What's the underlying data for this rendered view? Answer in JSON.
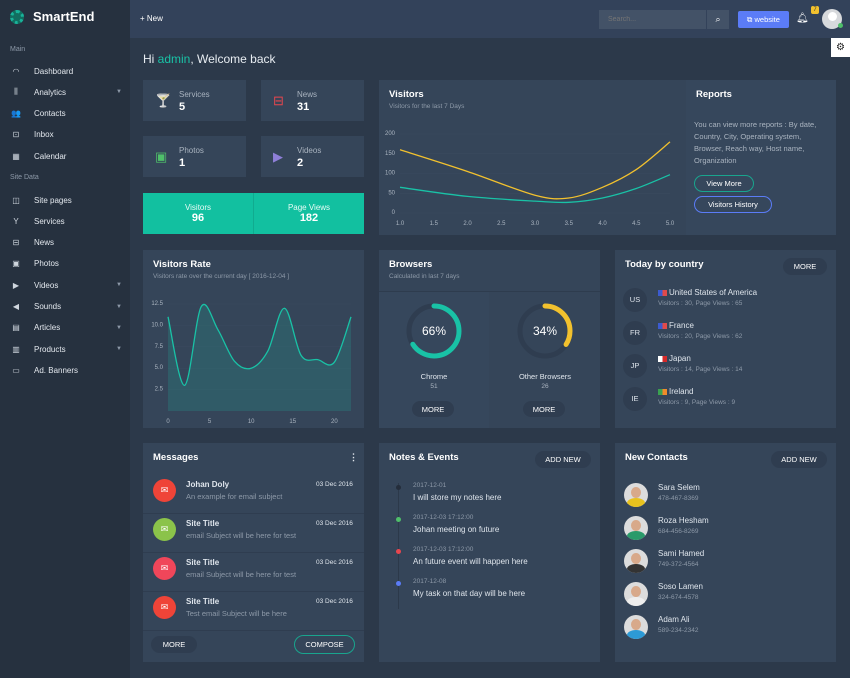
{
  "brand": "SmartEnd",
  "sidebar": {
    "section_main": "Main",
    "section_site": "Site Data",
    "items": [
      {
        "label": "Dashboard",
        "icon": "dashboard-icon",
        "glyph": "◠",
        "caret": false
      },
      {
        "label": "Analytics",
        "icon": "analytics-icon",
        "glyph": "⫼",
        "caret": true
      },
      {
        "label": "Contacts",
        "icon": "contacts-icon",
        "glyph": "👥",
        "caret": false
      },
      {
        "label": "Inbox",
        "icon": "inbox-icon",
        "glyph": "⊡",
        "caret": false
      },
      {
        "label": "Calendar",
        "icon": "calendar-icon",
        "glyph": "▦",
        "caret": false
      },
      {
        "label": "Site pages",
        "icon": "site-pages-icon",
        "glyph": "◫",
        "caret": false
      },
      {
        "label": "Services",
        "icon": "services-icon",
        "glyph": "Y",
        "caret": false
      },
      {
        "label": "News",
        "icon": "news-icon",
        "glyph": "⊟",
        "caret": false
      },
      {
        "label": "Photos",
        "icon": "photos-icon",
        "glyph": "▣",
        "caret": false
      },
      {
        "label": "Videos",
        "icon": "videos-icon",
        "glyph": "▶",
        "caret": true
      },
      {
        "label": "Sounds",
        "icon": "sounds-icon",
        "glyph": "◀",
        "caret": true
      },
      {
        "label": "Articles",
        "icon": "articles-icon",
        "glyph": "▤",
        "caret": true
      },
      {
        "label": "Products",
        "icon": "products-icon",
        "glyph": "▥",
        "caret": true
      },
      {
        "label": "Ad. Banners",
        "icon": "ad-banners-icon",
        "glyph": "▭",
        "caret": false
      }
    ]
  },
  "header": {
    "new_label": "New",
    "search_placeholder": "Search...",
    "website_label": "website",
    "notification_count": "7"
  },
  "welcome": {
    "hi": "Hi ",
    "user": "admin",
    "rest": ", Welcome back"
  },
  "stats": [
    {
      "label": "Services",
      "value": "5",
      "icon": "services-icon",
      "glyph": "🍸",
      "color": "#5b7cf7"
    },
    {
      "label": "News",
      "value": "31",
      "icon": "cast-icon",
      "glyph": "⊟",
      "color": "#e8464e"
    },
    {
      "label": "Photos",
      "value": "1",
      "icon": "photo-icon",
      "glyph": "▣",
      "color": "#4fbf6a"
    },
    {
      "label": "Videos",
      "value": "2",
      "icon": "video-icon",
      "glyph": "▶",
      "color": "#8e7fd8"
    }
  ],
  "totals": {
    "visitors_label": "Visitors",
    "visitors": "96",
    "pageviews_label": "Page Views",
    "pageviews": "182"
  },
  "visitors_card": {
    "title": "Visitors",
    "subtitle": "Visitors for the last 7 Days"
  },
  "reports": {
    "title": "Reports",
    "text": "You can view more reports : By date, Country, City, Operating system, Browser, Reach way, Host name, Organization",
    "view_more": "View More",
    "history": "Visitors History"
  },
  "rate_card": {
    "title": "Visitors Rate",
    "subtitle": "Visitors rate over the current day [ 2016-12-04 ]"
  },
  "chart_data": [
    {
      "type": "line",
      "xlim": [
        1,
        5
      ],
      "ylim": [
        0,
        200
      ],
      "xticks": [
        "1.0",
        "1.5",
        "2.0",
        "2.5",
        "3.0",
        "3.5",
        "4.0",
        "4.5",
        "5.0"
      ],
      "yticks": [
        "0",
        "50",
        "100",
        "150",
        "200"
      ],
      "x": [
        1,
        2,
        3,
        3.5,
        4,
        4.5,
        5
      ],
      "series": [
        {
          "color": "#f2c12e",
          "values": [
            160,
            105,
            45,
            38,
            65,
            110,
            180
          ]
        },
        {
          "color": "#19c2a6",
          "values": [
            65,
            42,
            30,
            27,
            38,
            62,
            97
          ]
        }
      ]
    },
    {
      "type": "area",
      "xlim": [
        0,
        22
      ],
      "ylim": [
        0,
        12.5
      ],
      "xticks": [
        "0",
        "5",
        "10",
        "15",
        "20"
      ],
      "yticks": [
        "2.5",
        "5.0",
        "7.5",
        "10.0",
        "12.5"
      ],
      "x": [
        0,
        2,
        4,
        6,
        8,
        10,
        12,
        14,
        16,
        18,
        20,
        22
      ],
      "series": [
        {
          "color": "#19c2a6",
          "values": [
            11,
            3,
            12.2,
            9.5,
            5.8,
            5,
            7,
            12,
            6.5,
            6,
            5.7,
            11
          ]
        }
      ]
    }
  ],
  "browsers": {
    "title": "Browsers",
    "subtitle": "Calculated in last 7 days",
    "items": [
      {
        "pct": "66%",
        "fraction": 0.66,
        "name": "Chrome",
        "count": "51",
        "color": "#19c2a6",
        "more": "MORE"
      },
      {
        "pct": "34%",
        "fraction": 0.34,
        "name": "Other Browsers",
        "count": "26",
        "color": "#f2c12e",
        "more": "MORE"
      }
    ]
  },
  "countries": {
    "title": "Today by country",
    "more": "MORE",
    "items": [
      {
        "code": "US",
        "name": "United States of America",
        "stats": "Visitors : 30, Page Views : 65",
        "flag": [
          "#3c5bd0",
          "#e04a4a"
        ]
      },
      {
        "code": "FR",
        "name": "France",
        "stats": "Visitors : 20, Page Views : 62",
        "flag": [
          "#3c5bd0",
          "#e04a4a"
        ]
      },
      {
        "code": "JP",
        "name": "Japan",
        "stats": "Visitors : 14, Page Views : 14",
        "flag": [
          "#ffffff",
          "#d62a2a"
        ]
      },
      {
        "code": "IE",
        "name": "Ireland",
        "stats": "Visitors : 9, Page Views : 9",
        "flag": [
          "#3aa150",
          "#f08a2a"
        ]
      }
    ]
  },
  "messages": {
    "title": "Messages",
    "more": "MORE",
    "compose": "COMPOSE",
    "items": [
      {
        "from": "Johan Doly",
        "subject": "An example for email subject",
        "date": "03 Dec 2016",
        "color": "#ef4438"
      },
      {
        "from": "Site Title",
        "subject": "email Subject will be here for test",
        "date": "03 Dec 2016",
        "color": "#8bc34a"
      },
      {
        "from": "Site Title",
        "subject": "email Subject will be here for test",
        "date": "03 Dec 2016",
        "color": "#f0465a"
      },
      {
        "from": "Site Title",
        "subject": "Test email Subject will be here",
        "date": "03 Dec 2016",
        "color": "#ef4438"
      }
    ]
  },
  "notes": {
    "title": "Notes & Events",
    "add": "ADD NEW",
    "items": [
      {
        "date": "2017-12-01",
        "text": "I will store my notes here",
        "color": "#242d3b"
      },
      {
        "date": "2017-12-03 17:12:00",
        "text": "Johan meeting on future",
        "color": "#4fbf6a"
      },
      {
        "date": "2017-12-03 17:12:00",
        "text": "An future event will happen here",
        "color": "#e8464e"
      },
      {
        "date": "2017-12-08",
        "text": "My task on that day will be here",
        "color": "#5b7cf7"
      }
    ]
  },
  "contacts": {
    "title": "New Contacts",
    "add": "ADD NEW",
    "items": [
      {
        "name": "Sara Selem",
        "phone": "478-467-8369",
        "shirt": "#e8c21e"
      },
      {
        "name": "Roza Hesham",
        "phone": "684-456-8269",
        "shirt": "#2a9a6a"
      },
      {
        "name": "Sami Hamed",
        "phone": "749-372-4564",
        "shirt": "#333"
      },
      {
        "name": "Soso Lamen",
        "phone": "324-674-4578",
        "shirt": "#eee"
      },
      {
        "name": "Adam Ali",
        "phone": "589-234-2342",
        "shirt": "#2d9ad6"
      }
    ]
  }
}
